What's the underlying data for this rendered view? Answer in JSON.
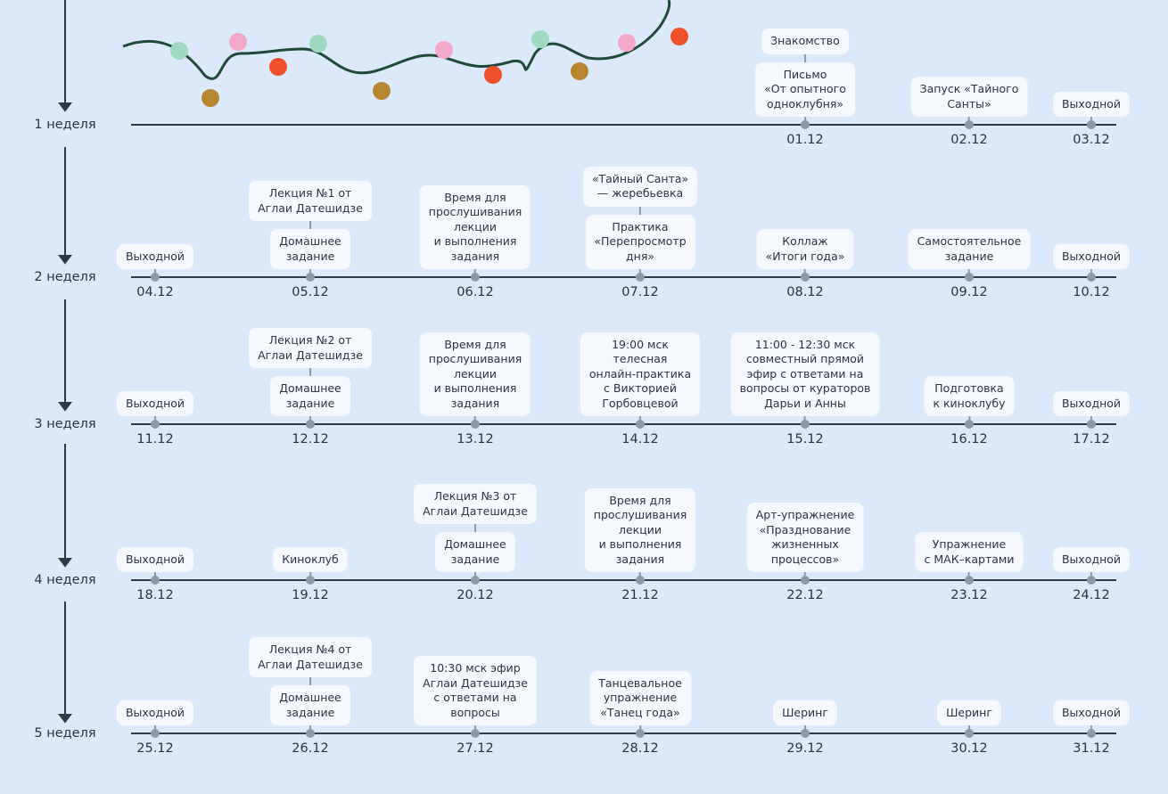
{
  "weeks": [
    {
      "label": "1 неделя",
      "days": [
        {
          "date": "01.12",
          "events": [
            "Знакомство",
            "Письмо\n«От опытного\nодноклубня»"
          ]
        },
        {
          "date": "02.12",
          "events": [
            "Запуск «Тайного\nСанты»"
          ]
        },
        {
          "date": "03.12",
          "events": [
            "Выходной"
          ]
        }
      ]
    },
    {
      "label": "2 неделя",
      "days": [
        {
          "date": "04.12",
          "events": [
            "Выходной"
          ]
        },
        {
          "date": "05.12",
          "events": [
            "Лекция №1 от\nАглаи Датешидзе",
            "Домашнее\nзадание"
          ]
        },
        {
          "date": "06.12",
          "events": [
            "Время для\nпрослушивания\nлекции\nи выполнения\nзадания"
          ]
        },
        {
          "date": "07.12",
          "events": [
            "«Тайный Санта»\n— жеребьевка",
            "Практика\n«Перепросмотр\nдня»"
          ]
        },
        {
          "date": "08.12",
          "events": [
            "Коллаж\n«Итоги года»"
          ]
        },
        {
          "date": "09.12",
          "events": [
            "Самостоятельное\nзадание"
          ]
        },
        {
          "date": "10.12",
          "events": [
            "Выходной"
          ]
        }
      ]
    },
    {
      "label": "3 неделя",
      "days": [
        {
          "date": "11.12",
          "events": [
            "Выходной"
          ]
        },
        {
          "date": "12.12",
          "events": [
            "Лекция №2 от\nАглаи Датешидзе",
            "Домашнее\nзадание"
          ]
        },
        {
          "date": "13.12",
          "events": [
            "Время для\nпрослушивания\nлекции\nи выполнения\nзадания"
          ]
        },
        {
          "date": "14.12",
          "events": [
            "19:00 мск\nтелесная\nонлайн-практика\nс Викторией\nГорбовцевой"
          ]
        },
        {
          "date": "15.12",
          "events": [
            "11:00 - 12:30 мск\nсовместный прямой\nэфир с ответами на\nвопросы от кураторов\nДарьи и Анны"
          ]
        },
        {
          "date": "16.12",
          "events": [
            "Подготовка\nк киноклубу"
          ]
        },
        {
          "date": "17.12",
          "events": [
            "Выходной"
          ]
        }
      ]
    },
    {
      "label": "4 неделя",
      "days": [
        {
          "date": "18.12",
          "events": [
            "Выходной"
          ]
        },
        {
          "date": "19.12",
          "events": [
            "Киноклуб"
          ]
        },
        {
          "date": "20.12",
          "events": [
            "Лекция №3 от\nАглаи Датешидзе",
            "Домашнее\nзадание"
          ]
        },
        {
          "date": "21.12",
          "events": [
            "Время для\nпрослушивания\nлекции\nи выполнения\nзадания"
          ]
        },
        {
          "date": "22.12",
          "events": [
            "Арт-упражнение\n«Празднование\nжизненных\nпроцессов»"
          ]
        },
        {
          "date": "23.12",
          "events": [
            "Упражнение\nс МАК–картами"
          ]
        },
        {
          "date": "24.12",
          "events": [
            "Выходной"
          ]
        }
      ]
    },
    {
      "label": "5 неделя",
      "days": [
        {
          "date": "25.12",
          "events": [
            "Выходной"
          ]
        },
        {
          "date": "26.12",
          "events": [
            "Лекция №4 от\nАглаи Датешидзе",
            "Домашнее\nзадание"
          ]
        },
        {
          "date": "27.12",
          "events": [
            "10:30 мск эфир\nАглаи Датешидзе\nс ответами на\nвопросы"
          ]
        },
        {
          "date": "28.12",
          "events": [
            "Танцевальное\nупражнение\n«Танец года»"
          ]
        },
        {
          "date": "29.12",
          "events": [
            "Шеринг"
          ]
        },
        {
          "date": "30.12",
          "events": [
            "Шеринг"
          ]
        },
        {
          "date": "31.12",
          "events": [
            "Выходной"
          ]
        }
      ]
    }
  ]
}
